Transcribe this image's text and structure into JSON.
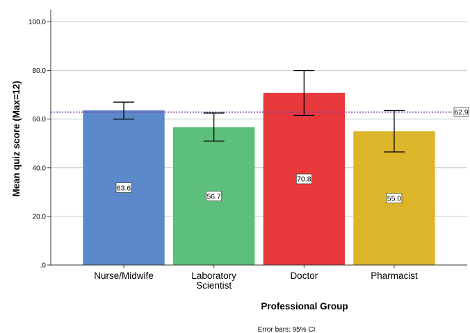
{
  "chart_data": {
    "type": "bar",
    "categories": [
      "Nurse/Midwife",
      "Laboratory Scientist",
      "Doctor",
      "Pharmacist"
    ],
    "category_lines": [
      [
        "Nurse/Midwife"
      ],
      [
        "Laboratory",
        "Scientist"
      ],
      [
        "Doctor"
      ],
      [
        "Pharmacist"
      ]
    ],
    "values": [
      63.6,
      56.7,
      70.8,
      55.0
    ],
    "value_labels": [
      "63.6",
      "56.7",
      "70.8",
      "55.0"
    ],
    "ci_lower": [
      60.0,
      51.0,
      61.5,
      46.5
    ],
    "ci_upper": [
      67.0,
      62.5,
      80.0,
      63.5
    ],
    "colors": [
      "#5B89C9",
      "#5CBF7C",
      "#E83A3D",
      "#DDB52A"
    ],
    "reference_line": {
      "value": 62.9,
      "label": "62.9",
      "color": "#7E3AA8"
    },
    "ylim": [
      0,
      105
    ],
    "yticks": [
      0,
      20,
      40,
      60,
      80,
      100
    ],
    "ytick_labels": [
      ".0",
      "20.0",
      "40.0",
      "60.0",
      "80.0",
      "100.0"
    ],
    "xlabel": "Professional Group",
    "ylabel": "Mean quiz score (Max=12)",
    "footnote": "Error bars: 95% CI",
    "grid": true
  }
}
